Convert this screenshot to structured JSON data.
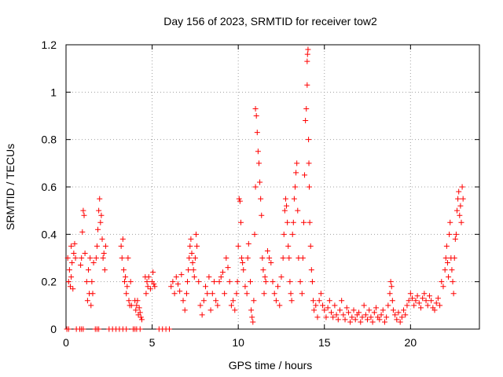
{
  "chart_data": {
    "type": "scatter",
    "title": "Day 156 of 2023, SRMTID for receiver tow2",
    "xlabel": "GPS time / hours",
    "ylabel": "SRMTID / TECUs",
    "xlim": [
      0,
      24
    ],
    "ylim": [
      0,
      1.2
    ],
    "x_ticks": [
      0,
      5,
      10,
      15,
      20
    ],
    "x_tick_labels": [
      "0",
      "5",
      "10",
      "15",
      "20"
    ],
    "y_ticks": [
      0,
      0.2,
      0.4,
      0.6,
      0.8,
      1.0,
      1.2
    ],
    "y_tick_labels": [
      "0",
      "0.2",
      "0.4",
      "0.6",
      "0.8",
      "1",
      "1.2"
    ],
    "grid": true,
    "marker": "+",
    "color": "#ff0000",
    "series": [
      {
        "name": "SRMTID",
        "points": [
          [
            0.05,
            0.0
          ],
          [
            0.15,
            0.0
          ],
          [
            0.1,
            0.3
          ],
          [
            0.15,
            0.2
          ],
          [
            0.2,
            0.25
          ],
          [
            0.25,
            0.18
          ],
          [
            0.3,
            0.22
          ],
          [
            0.35,
            0.28
          ],
          [
            0.4,
            0.17
          ],
          [
            0.45,
            0.32
          ],
          [
            0.5,
            0.36
          ],
          [
            0.55,
            0.3
          ],
          [
            0.3,
            0.35
          ],
          [
            0.6,
            0.0
          ],
          [
            0.8,
            0.0
          ],
          [
            0.9,
            0.0
          ],
          [
            1.0,
            0.0
          ],
          [
            0.85,
            0.27
          ],
          [
            0.9,
            0.3
          ],
          [
            0.95,
            0.41
          ],
          [
            1.0,
            0.5
          ],
          [
            1.05,
            0.48
          ],
          [
            1.1,
            0.32
          ],
          [
            1.2,
            0.2
          ],
          [
            1.25,
            0.12
          ],
          [
            1.3,
            0.25
          ],
          [
            1.35,
            0.15
          ],
          [
            1.4,
            0.3
          ],
          [
            1.45,
            0.1
          ],
          [
            1.5,
            0.2
          ],
          [
            1.55,
            0.15
          ],
          [
            1.6,
            0.28
          ],
          [
            1.7,
            0.0
          ],
          [
            1.8,
            0.0
          ],
          [
            1.9,
            0.0
          ],
          [
            1.75,
            0.3
          ],
          [
            1.8,
            0.35
          ],
          [
            1.85,
            0.42
          ],
          [
            1.9,
            0.5
          ],
          [
            1.95,
            0.55
          ],
          [
            2.0,
            0.45
          ],
          [
            2.05,
            0.48
          ],
          [
            2.1,
            0.38
          ],
          [
            2.15,
            0.3
          ],
          [
            2.2,
            0.32
          ],
          [
            2.25,
            0.25
          ],
          [
            2.3,
            0.35
          ],
          [
            2.5,
            0.0
          ],
          [
            2.7,
            0.0
          ],
          [
            2.9,
            0.0
          ],
          [
            3.1,
            0.0
          ],
          [
            3.3,
            0.0
          ],
          [
            3.5,
            0.0
          ],
          [
            3.2,
            0.35
          ],
          [
            3.25,
            0.3
          ],
          [
            3.3,
            0.38
          ],
          [
            3.35,
            0.25
          ],
          [
            3.4,
            0.2
          ],
          [
            3.45,
            0.22
          ],
          [
            3.5,
            0.15
          ],
          [
            3.55,
            0.18
          ],
          [
            3.6,
            0.3
          ],
          [
            3.65,
            0.12
          ],
          [
            3.7,
            0.1
          ],
          [
            3.75,
            0.2
          ],
          [
            3.8,
            0.1
          ],
          [
            3.9,
            0.0
          ],
          [
            4.0,
            0.0
          ],
          [
            4.1,
            0.0
          ],
          [
            4.3,
            0.0
          ],
          [
            4.0,
            0.12
          ],
          [
            4.05,
            0.08
          ],
          [
            4.1,
            0.1
          ],
          [
            4.15,
            0.12
          ],
          [
            4.2,
            0.06
          ],
          [
            4.25,
            0.09
          ],
          [
            4.3,
            0.07
          ],
          [
            4.35,
            0.05
          ],
          [
            4.4,
            0.04
          ],
          [
            4.6,
            0.22
          ],
          [
            4.65,
            0.15
          ],
          [
            4.7,
            0.2
          ],
          [
            4.75,
            0.18
          ],
          [
            4.8,
            0.22
          ],
          [
            4.9,
            0.17
          ],
          [
            5.0,
            0.2
          ],
          [
            5.05,
            0.24
          ],
          [
            5.1,
            0.19
          ],
          [
            5.15,
            0.18
          ],
          [
            5.4,
            0.0
          ],
          [
            5.6,
            0.0
          ],
          [
            5.8,
            0.0
          ],
          [
            6.0,
            0.0
          ],
          [
            6.1,
            0.18
          ],
          [
            6.2,
            0.2
          ],
          [
            6.3,
            0.15
          ],
          [
            6.4,
            0.22
          ],
          [
            6.5,
            0.19
          ],
          [
            6.6,
            0.16
          ],
          [
            6.7,
            0.23
          ],
          [
            6.8,
            0.12
          ],
          [
            6.9,
            0.08
          ],
          [
            7.0,
            0.15
          ],
          [
            7.05,
            0.2
          ],
          [
            7.1,
            0.25
          ],
          [
            7.15,
            0.3
          ],
          [
            7.2,
            0.35
          ],
          [
            7.25,
            0.38
          ],
          [
            7.3,
            0.32
          ],
          [
            7.35,
            0.28
          ],
          [
            7.4,
            0.25
          ],
          [
            7.45,
            0.22
          ],
          [
            7.5,
            0.3
          ],
          [
            7.55,
            0.4
          ],
          [
            7.6,
            0.35
          ],
          [
            7.7,
            0.2
          ],
          [
            7.8,
            0.1
          ],
          [
            7.9,
            0.06
          ],
          [
            8.0,
            0.12
          ],
          [
            8.1,
            0.18
          ],
          [
            8.2,
            0.15
          ],
          [
            8.3,
            0.22
          ],
          [
            8.4,
            0.08
          ],
          [
            8.5,
            0.15
          ],
          [
            8.6,
            0.2
          ],
          [
            8.7,
            0.12
          ],
          [
            8.8,
            0.1
          ],
          [
            8.9,
            0.2
          ],
          [
            9.0,
            0.22
          ],
          [
            9.1,
            0.24
          ],
          [
            9.2,
            0.15
          ],
          [
            9.3,
            0.3
          ],
          [
            9.4,
            0.26
          ],
          [
            9.5,
            0.2
          ],
          [
            9.6,
            0.1
          ],
          [
            9.7,
            0.12
          ],
          [
            9.8,
            0.08
          ],
          [
            9.9,
            0.15
          ],
          [
            9.95,
            0.2
          ],
          [
            10.0,
            0.35
          ],
          [
            10.05,
            0.55
          ],
          [
            10.1,
            0.54
          ],
          [
            10.15,
            0.45
          ],
          [
            10.2,
            0.3
          ],
          [
            10.25,
            0.28
          ],
          [
            10.3,
            0.25
          ],
          [
            10.4,
            0.18
          ],
          [
            10.5,
            0.15
          ],
          [
            10.55,
            0.3
          ],
          [
            10.6,
            0.36
          ],
          [
            10.7,
            0.2
          ],
          [
            10.75,
            0.08
          ],
          [
            10.8,
            0.05
          ],
          [
            10.85,
            0.03
          ],
          [
            10.9,
            0.12
          ],
          [
            10.95,
            0.4
          ],
          [
            11.0,
            0.6
          ],
          [
            11.0,
            0.93
          ],
          [
            11.05,
            0.9
          ],
          [
            11.1,
            0.83
          ],
          [
            11.15,
            0.75
          ],
          [
            11.2,
            0.7
          ],
          [
            11.25,
            0.62
          ],
          [
            11.3,
            0.55
          ],
          [
            11.35,
            0.48
          ],
          [
            11.4,
            0.3
          ],
          [
            11.45,
            0.25
          ],
          [
            11.5,
            0.15
          ],
          [
            11.55,
            0.22
          ],
          [
            11.6,
            0.2
          ],
          [
            11.7,
            0.33
          ],
          [
            11.8,
            0.3
          ],
          [
            11.9,
            0.28
          ],
          [
            12.0,
            0.2
          ],
          [
            12.1,
            0.15
          ],
          [
            12.2,
            0.12
          ],
          [
            12.3,
            0.18
          ],
          [
            12.4,
            0.1
          ],
          [
            12.5,
            0.22
          ],
          [
            12.6,
            0.3
          ],
          [
            12.65,
            0.4
          ],
          [
            12.7,
            0.5
          ],
          [
            12.75,
            0.55
          ],
          [
            12.8,
            0.52
          ],
          [
            12.85,
            0.45
          ],
          [
            12.9,
            0.35
          ],
          [
            12.95,
            0.3
          ],
          [
            13.0,
            0.2
          ],
          [
            13.05,
            0.15
          ],
          [
            13.1,
            0.12
          ],
          [
            13.15,
            0.4
          ],
          [
            13.2,
            0.45
          ],
          [
            13.25,
            0.55
          ],
          [
            13.3,
            0.6
          ],
          [
            13.35,
            0.66
          ],
          [
            13.4,
            0.7
          ],
          [
            13.45,
            0.5
          ],
          [
            13.5,
            0.3
          ],
          [
            13.6,
            0.2
          ],
          [
            13.7,
            0.15
          ],
          [
            13.75,
            0.3
          ],
          [
            13.8,
            0.45
          ],
          [
            13.85,
            0.65
          ],
          [
            13.9,
            0.88
          ],
          [
            13.95,
            0.93
          ],
          [
            14.0,
            1.03
          ],
          [
            14.0,
            1.13
          ],
          [
            14.02,
            1.16
          ],
          [
            14.05,
            1.18
          ],
          [
            14.08,
            0.8
          ],
          [
            14.1,
            0.7
          ],
          [
            14.12,
            0.6
          ],
          [
            14.15,
            0.45
          ],
          [
            14.2,
            0.35
          ],
          [
            14.25,
            0.25
          ],
          [
            14.3,
            0.2
          ],
          [
            14.35,
            0.12
          ],
          [
            14.4,
            0.08
          ],
          [
            14.5,
            0.1
          ],
          [
            14.6,
            0.05
          ],
          [
            14.7,
            0.12
          ],
          [
            14.8,
            0.15
          ],
          [
            14.9,
            0.1
          ],
          [
            15.0,
            0.08
          ],
          [
            15.1,
            0.05
          ],
          [
            15.2,
            0.09
          ],
          [
            15.3,
            0.12
          ],
          [
            15.4,
            0.07
          ],
          [
            15.5,
            0.05
          ],
          [
            15.6,
            0.1
          ],
          [
            15.7,
            0.06
          ],
          [
            15.8,
            0.04
          ],
          [
            15.9,
            0.08
          ],
          [
            16.0,
            0.12
          ],
          [
            16.1,
            0.06
          ],
          [
            16.2,
            0.04
          ],
          [
            16.3,
            0.09
          ],
          [
            16.4,
            0.07
          ],
          [
            16.5,
            0.03
          ],
          [
            16.6,
            0.05
          ],
          [
            16.7,
            0.08
          ],
          [
            16.8,
            0.04
          ],
          [
            16.9,
            0.06
          ],
          [
            17.0,
            0.07
          ],
          [
            17.1,
            0.03
          ],
          [
            17.2,
            0.05
          ],
          [
            17.3,
            0.1
          ],
          [
            17.4,
            0.06
          ],
          [
            17.5,
            0.04
          ],
          [
            17.6,
            0.08
          ],
          [
            17.7,
            0.05
          ],
          [
            17.8,
            0.03
          ],
          [
            17.9,
            0.07
          ],
          [
            18.0,
            0.09
          ],
          [
            18.1,
            0.05
          ],
          [
            18.2,
            0.04
          ],
          [
            18.3,
            0.06
          ],
          [
            18.4,
            0.08
          ],
          [
            18.5,
            0.03
          ],
          [
            18.6,
            0.05
          ],
          [
            18.7,
            0.1
          ],
          [
            18.8,
            0.15
          ],
          [
            18.85,
            0.2
          ],
          [
            18.9,
            0.18
          ],
          [
            18.95,
            0.12
          ],
          [
            19.0,
            0.08
          ],
          [
            19.1,
            0.06
          ],
          [
            19.2,
            0.04
          ],
          [
            19.3,
            0.07
          ],
          [
            19.4,
            0.03
          ],
          [
            19.5,
            0.05
          ],
          [
            19.6,
            0.08
          ],
          [
            19.7,
            0.06
          ],
          [
            19.8,
            0.1
          ],
          [
            19.9,
            0.12
          ],
          [
            20.0,
            0.15
          ],
          [
            20.1,
            0.13
          ],
          [
            20.2,
            0.1
          ],
          [
            20.3,
            0.12
          ],
          [
            20.4,
            0.14
          ],
          [
            20.5,
            0.11
          ],
          [
            20.6,
            0.09
          ],
          [
            20.7,
            0.13
          ],
          [
            20.8,
            0.15
          ],
          [
            20.9,
            0.12
          ],
          [
            21.0,
            0.1
          ],
          [
            21.1,
            0.14
          ],
          [
            21.2,
            0.12
          ],
          [
            21.3,
            0.09
          ],
          [
            21.4,
            0.08
          ],
          [
            21.5,
            0.11
          ],
          [
            21.6,
            0.13
          ],
          [
            21.7,
            0.1
          ],
          [
            21.8,
            0.2
          ],
          [
            21.9,
            0.18
          ],
          [
            22.0,
            0.25
          ],
          [
            22.05,
            0.3
          ],
          [
            22.1,
            0.35
          ],
          [
            22.15,
            0.28
          ],
          [
            22.2,
            0.22
          ],
          [
            22.25,
            0.4
          ],
          [
            22.3,
            0.45
          ],
          [
            22.35,
            0.3
          ],
          [
            22.4,
            0.25
          ],
          [
            22.45,
            0.2
          ],
          [
            22.5,
            0.15
          ],
          [
            22.55,
            0.3
          ],
          [
            22.6,
            0.38
          ],
          [
            22.65,
            0.4
          ],
          [
            22.7,
            0.5
          ],
          [
            22.75,
            0.55
          ],
          [
            22.8,
            0.58
          ],
          [
            22.85,
            0.48
          ],
          [
            22.9,
            0.52
          ],
          [
            22.95,
            0.45
          ],
          [
            23.0,
            0.6
          ],
          [
            23.05,
            0.55
          ]
        ]
      }
    ]
  }
}
